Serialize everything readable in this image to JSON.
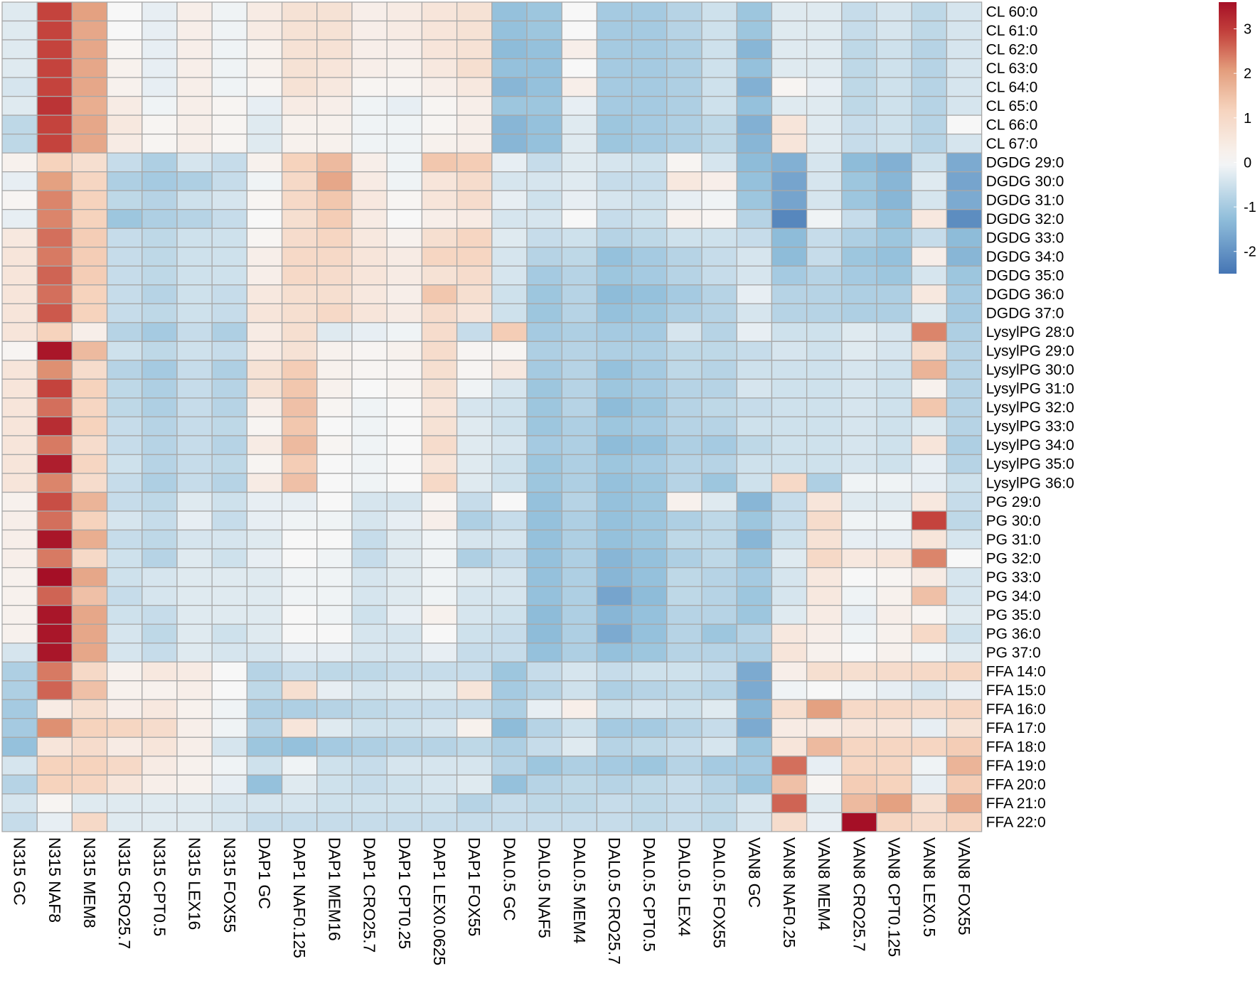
{
  "chart_data": {
    "type": "heatmap",
    "title": "",
    "xlabel": "",
    "ylabel": "",
    "colorscale": {
      "min": -2.5,
      "max": 3.6,
      "ticks": [
        3,
        2,
        1,
        0,
        -1,
        -2
      ],
      "tick_labels": [
        "3",
        "2",
        "1",
        "0",
        "-1",
        "-2"
      ],
      "colors": [
        [
          -2.5,
          "#4575b4"
        ],
        [
          -1.25,
          "#91bfdb"
        ],
        [
          0,
          "#f7f7f7"
        ],
        [
          1.2,
          "#f6d3bd"
        ],
        [
          2.1,
          "#e29b7a"
        ],
        [
          2.9,
          "#c4433d"
        ],
        [
          3.6,
          "#a50f26"
        ]
      ]
    },
    "columns": [
      "N315 GC",
      "N315 NAF8",
      "N315 MEM8",
      "N315 CRO25.7",
      "N315 CPT0.5",
      "N315 LEX16",
      "N315 FOX55",
      "DAP1 GC",
      "DAP1 NAF0.125",
      "DAP1 MEM16",
      "DAP1 CRO25.7",
      "DAP1 CPT0.25",
      "DAP1 LEX0.0625",
      "DAP1 FOX55",
      "DAL0.5 GC",
      "DAL0.5 NAF5",
      "DAL0.5 MEM4",
      "DAL0.5 CRO25.7",
      "DAL0.5 CPT0.5",
      "DAL0.5 LEX4",
      "DAL0.5 FOX55",
      "VAN8 GC",
      "VAN8 NAF0.25",
      "VAN8 MEM4",
      "VAN8 CRO25.7",
      "VAN8 CPT0.125",
      "VAN8 LEX0.5",
      "VAN8 FOX55"
    ],
    "rows": [
      "CL 60:0",
      "CL 61:0",
      "CL 62:0",
      "CL 63:0",
      "CL 64:0",
      "CL 65:0",
      "CL 66:0",
      "CL 67:0",
      "DGDG 29:0",
      "DGDG 30:0",
      "DGDG 31:0",
      "DGDG 32:0",
      "DGDG 33:0",
      "DGDG 34:0",
      "DGDG 35:0",
      "DGDG 36:0",
      "DGDG 37:0",
      "LysylPG 28:0",
      "LysylPG 29:0",
      "LysylPG 30:0",
      "LysylPG 31:0",
      "LysylPG 32:0",
      "LysylPG 33:0",
      "LysylPG 34:0",
      "LysylPG 35:0",
      "LysylPG 36:0",
      "PG 29:0",
      "PG 30:0",
      "PG 31:0",
      "PG 32:0",
      "PG 33:0",
      "PG 34:0",
      "PG 35:0",
      "PG 36:0",
      "PG 37:0",
      "FFA 14:0",
      "FFA 15:0",
      "FFA 16:0",
      "FFA 17:0",
      "FFA 18:0",
      "FFA 19:0",
      "FFA 20:0",
      "FFA 21:0",
      "FFA 22:0"
    ],
    "values": [
      [
        -0.3,
        2.9,
        2.0,
        0.0,
        -0.2,
        0.3,
        -0.1,
        0.4,
        0.7,
        0.7,
        0.3,
        0.4,
        0.6,
        0.7,
        -1.2,
        -1.1,
        0.0,
        -1.0,
        -1.0,
        -0.8,
        -0.5,
        -1.1,
        -0.3,
        -0.3,
        -0.6,
        -0.4,
        -0.7,
        -0.4
      ],
      [
        -0.3,
        2.9,
        1.9,
        0.0,
        -0.2,
        0.3,
        -0.1,
        0.4,
        0.7,
        0.7,
        0.3,
        0.4,
        0.6,
        0.7,
        -1.2,
        -1.1,
        0.0,
        -1.0,
        -1.0,
        -0.8,
        -0.5,
        -1.1,
        -0.3,
        -0.3,
        -0.6,
        -0.4,
        -0.7,
        -0.4
      ],
      [
        -0.3,
        2.9,
        1.9,
        0.1,
        -0.2,
        0.3,
        -0.1,
        0.2,
        0.7,
        0.7,
        0.3,
        0.3,
        0.6,
        0.7,
        -1.3,
        -1.2,
        0.3,
        -1.0,
        -1.0,
        -0.9,
        -0.5,
        -1.4,
        -0.3,
        -0.3,
        -0.7,
        -0.5,
        -0.8,
        -0.4
      ],
      [
        -0.3,
        2.9,
        1.9,
        0.2,
        -0.2,
        0.3,
        -0.1,
        0.2,
        0.7,
        0.6,
        0.3,
        0.2,
        0.5,
        0.8,
        -1.2,
        -1.2,
        0.0,
        -1.0,
        -1.0,
        -0.9,
        -0.5,
        -1.2,
        -0.3,
        -0.3,
        -0.7,
        -0.5,
        -0.8,
        -0.4
      ],
      [
        -0.4,
        2.9,
        1.9,
        0.2,
        -0.2,
        0.3,
        -0.1,
        0.1,
        0.7,
        0.5,
        0.1,
        0.1,
        0.3,
        0.5,
        -1.4,
        -1.2,
        0.3,
        -1.0,
        -1.0,
        -0.9,
        -0.5,
        -1.5,
        0.1,
        -0.2,
        -0.7,
        -0.5,
        -0.8,
        -0.4
      ],
      [
        -0.3,
        3.1,
        1.8,
        0.4,
        -0.1,
        0.3,
        0.1,
        -0.2,
        0.4,
        0.3,
        -0.1,
        -0.2,
        0.1,
        0.3,
        -1.1,
        -1.1,
        -0.2,
        -1.0,
        -1.0,
        -0.9,
        -0.5,
        -1.2,
        -0.3,
        -0.3,
        -0.7,
        -0.5,
        -0.8,
        -0.4
      ],
      [
        -0.7,
        2.9,
        1.9,
        0.5,
        0.1,
        0.3,
        0.1,
        -0.3,
        0.2,
        0.2,
        -0.1,
        -0.1,
        0.1,
        0.3,
        -1.4,
        -1.2,
        -0.3,
        -1.1,
        -1.0,
        -0.9,
        -0.7,
        -1.5,
        0.6,
        -0.3,
        -0.6,
        -0.5,
        -0.8,
        0.0
      ],
      [
        -0.7,
        2.9,
        1.9,
        0.4,
        0.1,
        0.3,
        0.1,
        -0.3,
        0.2,
        0.2,
        -0.1,
        -0.1,
        0.2,
        0.3,
        -1.4,
        -1.2,
        -0.3,
        -1.1,
        -1.0,
        -0.9,
        -0.7,
        -1.4,
        0.6,
        -0.3,
        -0.6,
        -0.5,
        -0.8,
        -0.4
      ],
      [
        0.2,
        1.2,
        0.8,
        -0.6,
        -0.9,
        -0.4,
        -0.6,
        0.2,
        1.2,
        1.6,
        0.3,
        -0.1,
        1.4,
        1.3,
        -0.2,
        -0.6,
        -0.3,
        -0.4,
        -0.5,
        0.1,
        -0.4,
        -1.3,
        -1.5,
        -0.4,
        -1.3,
        -1.5,
        -0.5,
        -1.6
      ],
      [
        -0.2,
        2.0,
        1.1,
        -0.9,
        -1.0,
        -0.9,
        -0.6,
        -0.1,
        1.0,
        1.9,
        0.4,
        -0.1,
        0.6,
        0.9,
        -0.4,
        -0.4,
        -0.3,
        -0.6,
        -0.6,
        0.5,
        0.3,
        -1.2,
        -1.7,
        -0.4,
        -1.1,
        -1.4,
        -0.3,
        -1.7
      ],
      [
        0.1,
        2.3,
        1.2,
        -0.7,
        -0.8,
        -0.5,
        -0.4,
        0.1,
        1.0,
        1.4,
        0.5,
        0.1,
        0.6,
        0.9,
        -0.2,
        -0.5,
        -0.2,
        -0.4,
        -0.5,
        -0.2,
        -0.1,
        -1.1,
        -1.7,
        -0.4,
        -1.1,
        -1.4,
        -0.4,
        -1.6
      ],
      [
        -0.2,
        2.3,
        1.2,
        -1.1,
        -0.9,
        -0.8,
        -0.6,
        0.0,
        0.8,
        1.3,
        0.4,
        0.0,
        0.3,
        0.4,
        -0.4,
        -0.4,
        0.0,
        -0.6,
        -0.5,
        0.2,
        0.1,
        -0.8,
        -2.2,
        -0.1,
        -0.6,
        -1.2,
        0.5,
        -2.1
      ],
      [
        0.5,
        2.5,
        1.3,
        -0.6,
        -0.7,
        -0.5,
        -0.5,
        0.1,
        0.9,
        1.1,
        0.5,
        0.2,
        0.8,
        1.1,
        -0.3,
        -0.6,
        -0.5,
        -0.8,
        -0.7,
        -0.5,
        -0.5,
        -0.6,
        -1.3,
        -0.6,
        -0.9,
        -1.1,
        -0.6,
        -1.3
      ],
      [
        0.6,
        2.4,
        1.3,
        -0.6,
        -0.7,
        -0.5,
        -0.5,
        0.3,
        1.0,
        1.0,
        0.6,
        0.4,
        1.1,
        1.1,
        -0.4,
        -0.8,
        -0.7,
        -1.2,
        -1.0,
        -0.8,
        -0.6,
        -0.4,
        -1.3,
        -0.6,
        -1.1,
        -1.2,
        0.3,
        -1.4
      ],
      [
        0.6,
        2.6,
        1.3,
        -0.6,
        -0.7,
        -0.5,
        -0.5,
        0.3,
        1.0,
        0.9,
        0.6,
        0.4,
        0.7,
        0.9,
        -0.4,
        -1.0,
        -0.8,
        -1.1,
        -1.0,
        -0.8,
        -0.6,
        -0.4,
        -1.0,
        -0.8,
        -1.0,
        -1.1,
        -0.4,
        -1.1
      ],
      [
        0.6,
        2.5,
        1.2,
        -0.6,
        -0.8,
        -0.5,
        -0.6,
        0.5,
        0.8,
        0.8,
        0.5,
        0.3,
        1.4,
        0.8,
        -0.5,
        -1.1,
        -0.8,
        -1.3,
        -1.2,
        -1.0,
        -0.8,
        -0.2,
        -0.8,
        -0.8,
        -0.9,
        -0.9,
        0.5,
        -1.0
      ],
      [
        0.6,
        2.7,
        1.2,
        -0.6,
        -0.7,
        -0.5,
        -0.6,
        0.6,
        0.8,
        1.0,
        0.6,
        0.4,
        0.9,
        0.6,
        -0.5,
        -1.1,
        -0.8,
        -1.2,
        -1.1,
        -0.9,
        -0.8,
        -0.4,
        -0.8,
        -0.8,
        -0.9,
        -0.9,
        -0.3,
        -1.0
      ],
      [
        0.6,
        1.2,
        0.3,
        -0.8,
        -1.0,
        -0.6,
        -0.9,
        0.4,
        0.8,
        -0.3,
        -0.2,
        -0.1,
        0.9,
        -0.6,
        1.3,
        -1.0,
        -0.9,
        -1.0,
        -1.0,
        -0.4,
        -0.8,
        -0.2,
        -0.5,
        -0.5,
        -0.3,
        -0.4,
        2.3,
        -0.9
      ],
      [
        0.1,
        3.5,
        1.6,
        -0.5,
        -0.7,
        -0.5,
        -0.6,
        0.4,
        0.7,
        0.2,
        0.1,
        0.2,
        0.9,
        0.1,
        0.1,
        -0.9,
        -0.8,
        -0.9,
        -0.9,
        -0.7,
        -0.7,
        -0.6,
        -0.4,
        -0.5,
        -0.3,
        -0.4,
        0.9,
        -0.8
      ],
      [
        0.6,
        2.2,
        0.9,
        -0.8,
        -1.0,
        -0.6,
        -0.9,
        0.7,
        1.3,
        0.2,
        0.1,
        0.1,
        0.8,
        0.1,
        0.5,
        -1.0,
        -0.8,
        -1.2,
        -1.0,
        -0.7,
        -0.8,
        -0.5,
        -0.5,
        -0.5,
        -0.4,
        -0.5,
        1.7,
        -0.8
      ],
      [
        0.6,
        2.9,
        1.2,
        -0.7,
        -0.9,
        -0.6,
        -0.8,
        0.7,
        1.4,
        0.2,
        0.0,
        0.1,
        0.7,
        -0.1,
        -0.4,
        -1.1,
        -0.8,
        -1.1,
        -1.0,
        -0.8,
        -0.8,
        -0.4,
        -0.5,
        -0.5,
        -0.4,
        -0.5,
        0.2,
        -0.8
      ],
      [
        0.6,
        2.5,
        1.1,
        -0.7,
        -0.9,
        -0.6,
        -0.8,
        0.3,
        1.5,
        0.1,
        -0.1,
        0.0,
        0.6,
        -0.4,
        -0.5,
        -1.1,
        -0.8,
        -1.3,
        -1.1,
        -0.8,
        -0.7,
        -0.6,
        -0.5,
        -0.5,
        -0.4,
        -0.5,
        1.4,
        -0.8
      ],
      [
        0.6,
        3.2,
        1.2,
        -0.6,
        -0.8,
        -0.6,
        -0.7,
        0.1,
        1.4,
        0.0,
        -0.1,
        0.0,
        0.7,
        -0.3,
        -0.5,
        -1.1,
        -0.9,
        -1.1,
        -1.0,
        -0.8,
        -0.8,
        -0.5,
        -0.5,
        -0.5,
        -0.4,
        -0.5,
        -0.3,
        -0.8
      ],
      [
        0.6,
        2.4,
        0.9,
        -0.6,
        -0.8,
        -0.6,
        -0.8,
        0.4,
        1.6,
        0.1,
        -0.1,
        0.0,
        0.9,
        -0.3,
        -0.4,
        -1.0,
        -0.9,
        -1.3,
        -1.2,
        -0.9,
        -1.0,
        -0.7,
        -0.5,
        -0.5,
        -0.4,
        -0.5,
        0.6,
        -0.9
      ],
      [
        0.6,
        3.4,
        1.1,
        -0.5,
        -0.8,
        -0.6,
        -0.7,
        0.1,
        1.3,
        0.0,
        -0.1,
        0.0,
        0.6,
        -0.3,
        -0.5,
        -1.1,
        -0.9,
        -1.1,
        -1.0,
        -0.8,
        -0.8,
        -0.5,
        -0.5,
        -0.5,
        -0.4,
        -0.5,
        -0.2,
        -0.8
      ],
      [
        0.6,
        2.3,
        0.9,
        -0.6,
        -0.9,
        -0.6,
        -0.8,
        0.4,
        1.5,
        0.0,
        -0.1,
        0.0,
        1.0,
        -0.3,
        -0.5,
        -1.1,
        -0.9,
        -1.2,
        -1.1,
        -0.8,
        -1.1,
        -0.5,
        1.0,
        -0.9,
        -0.1,
        -0.1,
        -0.2,
        -0.5
      ],
      [
        0.2,
        2.8,
        1.7,
        -0.6,
        -0.7,
        -0.3,
        -0.5,
        -0.2,
        -0.2,
        0.0,
        -0.4,
        -0.4,
        0.1,
        -0.6,
        0.0,
        -1.2,
        -0.8,
        -1.2,
        -1.1,
        0.2,
        -0.3,
        -1.4,
        -0.6,
        0.6,
        -0.3,
        -0.3,
        0.5,
        -0.6
      ],
      [
        0.3,
        2.5,
        1.2,
        -0.4,
        -0.6,
        -0.2,
        -0.6,
        -0.2,
        -0.1,
        -0.1,
        -0.4,
        -0.2,
        0.3,
        -0.9,
        -0.6,
        -1.2,
        -0.9,
        -1.2,
        -1.1,
        -0.9,
        -0.7,
        -1.1,
        -0.6,
        0.9,
        -0.1,
        -0.1,
        2.9,
        -0.7
      ],
      [
        0.3,
        3.5,
        1.8,
        -0.6,
        -0.7,
        -0.4,
        -0.4,
        -0.3,
        0.0,
        0.0,
        -0.6,
        -0.3,
        -0.1,
        -0.4,
        -0.4,
        -1.2,
        -0.9,
        -1.2,
        -1.1,
        -0.7,
        -0.7,
        -1.4,
        -0.5,
        0.7,
        -0.2,
        -0.2,
        0.6,
        -0.4
      ],
      [
        0.3,
        2.4,
        1.0,
        -0.5,
        -0.8,
        -0.3,
        -0.5,
        -0.2,
        0.0,
        -0.1,
        -0.6,
        -0.3,
        -0.1,
        -0.9,
        -0.6,
        -1.2,
        -0.9,
        -1.4,
        -1.2,
        -0.9,
        -0.7,
        -1.1,
        -0.3,
        1.0,
        0.5,
        0.6,
        2.3,
        0.0
      ],
      [
        0.2,
        3.6,
        1.9,
        -0.5,
        -0.4,
        -0.3,
        -0.3,
        -0.3,
        -0.1,
        -0.1,
        -0.4,
        -0.3,
        -0.1,
        -0.3,
        -0.4,
        -1.2,
        -0.9,
        -1.4,
        -1.2,
        -0.7,
        -0.8,
        -1.0,
        -0.4,
        0.5,
        0.0,
        0.1,
        0.4,
        -0.4
      ],
      [
        0.2,
        2.6,
        1.5,
        -0.6,
        -0.4,
        -0.3,
        -0.3,
        -0.3,
        -0.1,
        -0.1,
        -0.4,
        -0.3,
        -0.1,
        -0.4,
        -0.4,
        -1.2,
        -0.9,
        -1.7,
        -1.3,
        -0.7,
        -0.8,
        -1.1,
        -0.4,
        0.5,
        -0.1,
        0.2,
        1.5,
        -0.4
      ],
      [
        0.2,
        3.5,
        1.9,
        -0.5,
        -0.6,
        -0.3,
        -0.3,
        -0.3,
        0.0,
        -0.1,
        -0.5,
        -0.2,
        0.2,
        -0.4,
        -0.5,
        -1.3,
        -0.9,
        -1.4,
        -1.2,
        -0.8,
        -0.8,
        -1.1,
        -0.3,
        0.4,
        -0.2,
        0.3,
        0.1,
        -0.3
      ],
      [
        0.2,
        3.5,
        1.9,
        -0.4,
        -0.7,
        -0.3,
        -0.5,
        -0.3,
        0.0,
        0.0,
        -0.4,
        -0.4,
        0.0,
        -0.5,
        -0.6,
        -1.3,
        -0.9,
        -1.6,
        -1.2,
        -0.8,
        -1.1,
        -0.8,
        0.5,
        0.3,
        -0.1,
        0.2,
        1.0,
        -0.5
      ],
      [
        -0.4,
        3.5,
        1.9,
        -0.4,
        -0.6,
        -0.3,
        -0.4,
        -0.4,
        -0.2,
        -0.2,
        -0.4,
        -0.4,
        -0.2,
        -0.6,
        -0.6,
        -1.2,
        -0.9,
        -1.2,
        -1.1,
        -0.8,
        -0.8,
        -0.9,
        0.6,
        0.2,
        0.0,
        0.2,
        -0.1,
        -0.3
      ],
      [
        -0.9,
        2.4,
        1.0,
        0.2,
        0.5,
        0.4,
        0.0,
        -0.8,
        -0.6,
        -0.7,
        -0.7,
        -0.6,
        -0.6,
        -0.6,
        -1.1,
        -0.6,
        -0.4,
        -0.6,
        -0.5,
        -0.5,
        -0.6,
        -1.6,
        0.3,
        0.8,
        0.8,
        0.9,
        1.0,
        1.1
      ],
      [
        -0.9,
        2.6,
        1.5,
        0.2,
        0.2,
        0.3,
        0.0,
        -0.7,
        0.8,
        -0.2,
        -0.4,
        -0.3,
        -0.3,
        0.6,
        -1.0,
        -0.8,
        -0.5,
        -0.9,
        -0.8,
        -0.7,
        -0.8,
        -1.6,
        -0.1,
        0.0,
        -0.1,
        -0.2,
        -0.4,
        -0.2
      ],
      [
        -1.0,
        0.4,
        0.8,
        0.3,
        0.5,
        0.2,
        -0.1,
        -0.9,
        -0.9,
        -0.8,
        -0.7,
        -0.6,
        -0.6,
        -0.6,
        -0.9,
        -0.2,
        0.3,
        -0.5,
        -0.4,
        -0.5,
        -0.3,
        -1.4,
        0.8,
        2.0,
        1.0,
        1.0,
        0.9,
        1.1
      ],
      [
        -1.0,
        2.2,
        1.2,
        1.1,
        0.9,
        0.3,
        -0.1,
        -0.8,
        0.6,
        -0.3,
        -0.5,
        -0.5,
        -0.4,
        0.2,
        -1.3,
        -0.8,
        -0.5,
        -1.0,
        -1.0,
        -0.8,
        -0.6,
        -1.6,
        0.4,
        0.4,
        0.6,
        0.6,
        -0.2,
        0.7
      ],
      [
        -1.2,
        0.6,
        0.9,
        0.4,
        0.6,
        0.3,
        -0.4,
        -1.1,
        -1.2,
        -1.0,
        -0.9,
        -0.8,
        -0.8,
        -0.7,
        -0.9,
        -0.6,
        -0.3,
        -0.8,
        -0.7,
        -0.6,
        -0.4,
        -1.1,
        0.6,
        1.6,
        1.1,
        1.1,
        1.1,
        1.3
      ],
      [
        -0.4,
        1.2,
        1.2,
        1.0,
        0.4,
        0.2,
        -0.1,
        -0.5,
        -0.1,
        -0.5,
        -0.6,
        -0.4,
        -0.4,
        -0.4,
        -0.8,
        -1.1,
        -0.9,
        -1.0,
        -1.1,
        -0.8,
        -1.0,
        -1.0,
        2.5,
        -0.2,
        1.1,
        1.1,
        -0.1,
        1.7
      ],
      [
        -0.8,
        1.2,
        1.1,
        0.6,
        0.3,
        0.2,
        -0.2,
        -1.2,
        -0.3,
        -0.5,
        -0.6,
        -0.5,
        -0.4,
        -0.3,
        -1.2,
        -0.8,
        -0.7,
        -0.8,
        -0.7,
        -0.6,
        -0.8,
        -1.1,
        1.5,
        0.1,
        1.3,
        1.2,
        -0.2,
        1.3
      ],
      [
        -0.4,
        0.1,
        -0.3,
        -0.3,
        -0.3,
        -0.3,
        -0.4,
        -0.4,
        -0.4,
        -0.5,
        -0.5,
        -0.5,
        -0.5,
        -0.8,
        -0.6,
        -0.7,
        -0.7,
        -0.6,
        -0.7,
        -0.6,
        -0.7,
        -0.4,
        2.6,
        -0.3,
        1.6,
        2.0,
        0.8,
        1.9
      ],
      [
        -0.6,
        -0.2,
        1.0,
        -0.3,
        -0.3,
        -0.3,
        -0.4,
        -0.6,
        -0.6,
        -0.6,
        -0.6,
        -0.6,
        -0.6,
        -0.6,
        -0.6,
        -0.6,
        -0.6,
        -0.6,
        -0.7,
        -0.6,
        -0.7,
        -0.4,
        0.9,
        -0.2,
        3.6,
        1.1,
        0.9,
        1.1
      ]
    ]
  }
}
